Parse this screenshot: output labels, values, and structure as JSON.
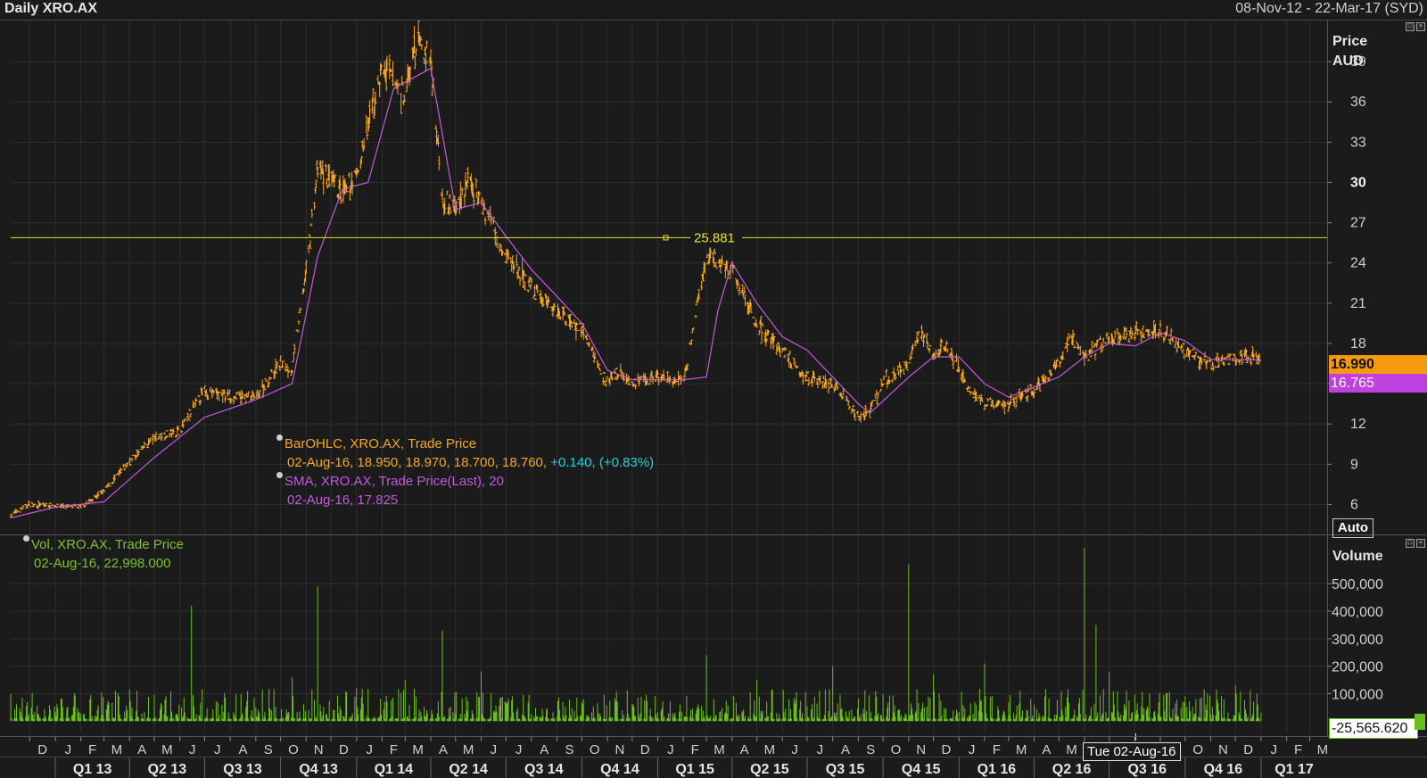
{
  "header": {
    "title": "Daily XRO.AX",
    "date_range": "08-Nov-12 - 22-Mar-17 (SYD)"
  },
  "price_pane": {
    "axis_title_1": "Price",
    "axis_title_2": "AUD",
    "auto_label": "Auto",
    "last_price_tag": "16.990",
    "sma_tag": "16.765",
    "hline_label": "25.881",
    "legend": {
      "series1_name": "BarOHLC, XRO.AX, Trade Price",
      "series1_values": "02-Aug-16, 18.950, 18.970, 18.700, 18.760,",
      "series1_change": "+0.140, (+0.83%)",
      "series2_name": "SMA, XRO.AX, Trade Price(Last),  20",
      "series2_values": "02-Aug-16, 17.825"
    }
  },
  "volume_pane": {
    "axis_title": "Volume",
    "value_tag": "-25,565.620",
    "legend": {
      "series_name": "Vol, XRO.AX, Trade Price",
      "series_values": "02-Aug-16, 22,998.000"
    }
  },
  "cursor_label": "Tue 02-Aug-16",
  "colors": {
    "background": "#1b1b1b",
    "grid": "#2e2e2e",
    "price_bars": "#f5a623",
    "sma": "#c45adc",
    "volume": "#6cbe1f",
    "hline": "#e3e32a",
    "change_text": "#26d0d6"
  },
  "chart_data": [
    {
      "type": "line",
      "title": "Daily XRO.AX",
      "ylabel": "Price AUD",
      "ylim": [
        4.5,
        42
      ],
      "y_ticks": [
        "6",
        "9",
        "12",
        "15",
        "18",
        "21",
        "24",
        "27",
        "30",
        "33",
        "36",
        "39"
      ],
      "grid": true,
      "series": [
        {
          "name": "BarOHLC, XRO.AX, Trade Price",
          "x": [
            "08-Nov-12",
            "01-Dec-12",
            "01-Jan-13",
            "01-Feb-13",
            "01-Mar-13",
            "01-Apr-13",
            "01-May-13",
            "01-Jun-13",
            "01-Jul-13",
            "01-Aug-13",
            "01-Sep-13",
            "01-Oct-13",
            "15-Oct-13",
            "01-Nov-13",
            "15-Nov-13",
            "01-Dec-13",
            "15-Dec-13",
            "01-Jan-14",
            "01-Feb-14",
            "15-Feb-14",
            "01-Mar-14",
            "15-Mar-14",
            "01-Apr-14",
            "15-Apr-14",
            "01-May-14",
            "15-May-14",
            "01-Jun-14",
            "15-Jun-14",
            "01-Jul-14",
            "15-Jul-14",
            "01-Aug-14",
            "01-Sep-14",
            "01-Oct-14",
            "01-Nov-14",
            "15-Nov-14",
            "01-Dec-14",
            "01-Jan-15",
            "01-Feb-15",
            "01-Mar-15",
            "15-Mar-15",
            "01-Apr-15",
            "01-May-15",
            "15-May-15",
            "01-Jun-15",
            "01-Jul-15",
            "01-Aug-15",
            "01-Sep-15",
            "15-Sep-15",
            "01-Oct-15",
            "01-Nov-15",
            "15-Nov-15",
            "01-Dec-15",
            "15-Dec-15",
            "01-Jan-16",
            "15-Jan-16",
            "01-Feb-16",
            "01-Mar-16",
            "01-Apr-16",
            "01-May-16",
            "15-May-16",
            "01-Jun-16",
            "01-Jul-16",
            "02-Aug-16",
            "01-Sep-16",
            "01-Oct-16",
            "01-Nov-16",
            "01-Dec-16",
            "01-Jan-17"
          ],
          "y": [
            5.2,
            6.0,
            5.9,
            5.8,
            7.0,
            9.2,
            11.0,
            11.5,
            14.5,
            14.0,
            14.0,
            16.5,
            16.0,
            23.5,
            31.0,
            30.0,
            29.0,
            30.5,
            38.5,
            37.5,
            36.5,
            40.5,
            39.0,
            29.0,
            28.0,
            30.0,
            28.5,
            27.0,
            24.5,
            23.5,
            22.0,
            20.5,
            19.0,
            15.0,
            16.0,
            15.0,
            15.5,
            15.0,
            24.5,
            24.0,
            23.5,
            19.5,
            18.5,
            17.5,
            15.5,
            15.0,
            12.5,
            13.0,
            15.0,
            16.5,
            19.0,
            17.0,
            18.0,
            16.0,
            14.5,
            13.5,
            13.5,
            14.5,
            16.5,
            18.5,
            17.0,
            18.5,
            18.76,
            19.0,
            17.5,
            16.5,
            17.0,
            16.99
          ]
        },
        {
          "name": "SMA, XRO.AX, Trade Price(Last),  20",
          "x": [
            "08-Nov-12",
            "01-Jan-13",
            "01-Mar-13",
            "01-May-13",
            "01-Jul-13",
            "01-Sep-13",
            "15-Oct-13",
            "15-Nov-13",
            "15-Dec-13",
            "15-Jan-14",
            "15-Feb-14",
            "01-Apr-14",
            "01-May-14",
            "01-Jun-14",
            "01-Jul-14",
            "01-Aug-14",
            "01-Sep-14",
            "01-Oct-14",
            "01-Nov-14",
            "01-Dec-14",
            "01-Feb-15",
            "01-Mar-15",
            "15-Mar-15",
            "01-Apr-15",
            "01-May-15",
            "01-Jun-15",
            "01-Jul-15",
            "01-Aug-15",
            "01-Sep-15",
            "15-Sep-15",
            "01-Nov-15",
            "01-Dec-15",
            "01-Jan-16",
            "01-Feb-16",
            "01-Mar-16",
            "01-May-16",
            "01-Jun-16",
            "01-Jul-16",
            "02-Aug-16",
            "01-Sep-16",
            "01-Oct-16",
            "01-Nov-16",
            "01-Dec-16",
            "01-Jan-17"
          ],
          "y": [
            5.0,
            5.8,
            6.2,
            9.5,
            12.5,
            13.8,
            15.0,
            24.5,
            29.5,
            30.0,
            37.0,
            38.5,
            28.0,
            28.5,
            26.0,
            23.5,
            21.5,
            19.5,
            16.0,
            15.3,
            15.3,
            15.5,
            20.5,
            24.0,
            21.0,
            18.5,
            17.5,
            15.5,
            13.5,
            12.8,
            15.5,
            17.0,
            17.0,
            15.0,
            14.0,
            15.5,
            17.0,
            18.0,
            17.825,
            18.8,
            18.2,
            16.8,
            16.8,
            16.765
          ]
        }
      ]
    },
    {
      "type": "bar",
      "title": "Vol, XRO.AX, Trade Price",
      "ylabel": "Volume",
      "ylim": [
        -25000,
        650000
      ],
      "y_ticks": [
        "100,000",
        "200,000",
        "300,000",
        "400,000",
        "500,000"
      ],
      "grid": true,
      "categories": [
        "08-Nov-12",
        "01-Jan-13",
        "15-Jun-13",
        "01-Sep-13",
        "15-Oct-13",
        "15-Nov-13",
        "01-Jan-14",
        "01-Mar-14",
        "15-Apr-14",
        "01-Jun-14",
        "01-Oct-14",
        "01-Jan-15",
        "01-Mar-15",
        "01-May-15",
        "01-Aug-15",
        "01-Nov-15",
        "01-Dec-15",
        "01-Feb-16",
        "01-Apr-16",
        "01-Jun-16",
        "15-Jun-16",
        "01-Jul-16",
        "02-Aug-16",
        "01-Oct-16",
        "01-Dec-16",
        "01-Jan-17"
      ],
      "values": [
        60000,
        30000,
        420000,
        50000,
        160000,
        490000,
        120000,
        150000,
        330000,
        180000,
        70000,
        30000,
        240000,
        150000,
        200000,
        570000,
        170000,
        210000,
        60000,
        630000,
        350000,
        180000,
        22998,
        90000,
        130000,
        30000
      ]
    }
  ],
  "x_axis": {
    "months": [
      "D",
      "J",
      "F",
      "M",
      "A",
      "M",
      "J",
      "J",
      "A",
      "S",
      "O",
      "N",
      "D",
      "J",
      "F",
      "M",
      "A",
      "M",
      "J",
      "J",
      "A",
      "S",
      "O",
      "N",
      "D",
      "J",
      "F",
      "M",
      "A",
      "M",
      "J",
      "J",
      "A",
      "S",
      "O",
      "N",
      "D",
      "J",
      "F",
      "M",
      "A",
      "M",
      "J",
      "J",
      "A",
      "S",
      "O",
      "N",
      "D",
      "J",
      "F",
      "M"
    ],
    "quarters": [
      "Q1 13",
      "Q2 13",
      "Q3 13",
      "Q4 13",
      "Q1 14",
      "Q2 14",
      "Q3 14",
      "Q4 14",
      "Q1 15",
      "Q2 15",
      "Q3 15",
      "Q4 15",
      "Q1 16",
      "Q2 16",
      "Q3 16",
      "Q4 16",
      "Q1 17"
    ]
  }
}
